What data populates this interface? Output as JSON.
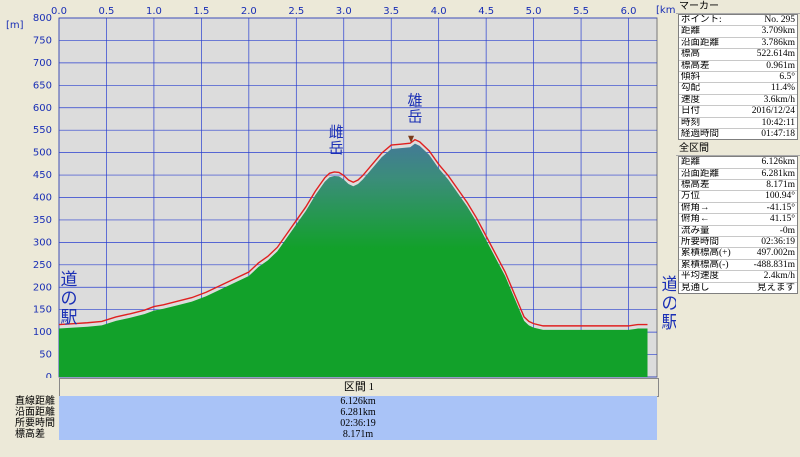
{
  "chart_data": {
    "type": "area",
    "x_unit": "[km]",
    "y_unit": "[m]",
    "x_ticks": [
      "0.0",
      "0.5",
      "1.0",
      "1.5",
      "2.0",
      "2.5",
      "3.0",
      "3.5",
      "4.0",
      "4.5",
      "5.0",
      "5.5",
      "6.0"
    ],
    "y_ticks": [
      "0",
      "50",
      "100",
      "150",
      "200",
      "250",
      "300",
      "350",
      "400",
      "450",
      "500",
      "550",
      "600",
      "650",
      "700",
      "750",
      "800"
    ],
    "xlim": [
      0,
      6.3
    ],
    "ylim": [
      0,
      800
    ],
    "grid": true,
    "colors": {
      "fill_low": "#12a12a",
      "fill_high": "#3f7f93",
      "line": "#e02020",
      "grid": "#2a3fd0",
      "background": "#dcdcdc"
    },
    "series": [
      {
        "x": [
          0.0,
          0.15,
          0.3,
          0.45,
          0.6,
          0.75,
          0.9,
          1.0,
          1.1,
          1.25,
          1.4,
          1.55,
          1.7,
          1.85,
          2.0,
          2.1,
          2.2,
          2.3,
          2.4,
          2.5,
          2.6,
          2.7,
          2.75,
          2.8,
          2.85,
          2.9,
          2.95,
          3.0,
          3.05,
          3.1,
          3.15,
          3.2,
          3.3,
          3.4,
          3.5,
          3.6,
          3.7,
          3.75,
          3.8,
          3.9,
          4.0,
          4.1,
          4.2,
          4.3,
          4.4,
          4.5,
          4.6,
          4.7,
          4.8,
          4.9,
          4.95,
          5.0,
          5.1,
          5.2,
          5.3,
          5.4,
          5.6,
          5.8,
          6.0,
          6.1,
          6.2
        ],
        "y": [
          108,
          110,
          112,
          115,
          125,
          132,
          140,
          148,
          152,
          160,
          168,
          180,
          195,
          210,
          225,
          245,
          260,
          280,
          310,
          340,
          370,
          405,
          420,
          435,
          445,
          448,
          447,
          440,
          430,
          425,
          430,
          440,
          465,
          490,
          508,
          510,
          512,
          520,
          515,
          495,
          465,
          440,
          410,
          380,
          345,
          305,
          265,
          225,
          175,
          125,
          115,
          110,
          105,
          105,
          105,
          105,
          105,
          105,
          105,
          108,
          108
        ]
      }
    ],
    "annotations": [
      {
        "label": "雌岳",
        "x": 2.92,
        "y": 450
      },
      {
        "label": "雄岳",
        "x": 3.75,
        "y": 520
      }
    ],
    "station_labels": [
      {
        "label": "道の駅",
        "side": "left"
      },
      {
        "label": "道の駅",
        "side": "right"
      }
    ]
  },
  "panel": {
    "marker_title": "マーカー",
    "marker_rows": [
      {
        "label": "ポイント:",
        "value": "No. 295"
      },
      {
        "label": "距離",
        "value": "3.709km"
      },
      {
        "label": "沿面距離",
        "value": "3.786km"
      },
      {
        "label": "標高",
        "value": "522.614m"
      },
      {
        "label": "標高差",
        "value": "0.961m"
      },
      {
        "label": "傾斜",
        "value": "6.5°"
      },
      {
        "label": "勾配",
        "value": "11.4%"
      },
      {
        "label": "速度",
        "value": "3.6km/h"
      },
      {
        "label": "日付",
        "value": "2016/12/24"
      },
      {
        "label": "時刻",
        "value": "10:42:11"
      },
      {
        "label": "経過時間",
        "value": "01:47:18"
      }
    ],
    "section_title": "全区間",
    "section_rows": [
      {
        "label": "距離",
        "value": "6.126km"
      },
      {
        "label": "沿面距離",
        "value": "6.281km"
      },
      {
        "label": "標高差",
        "value": "8.171m"
      },
      {
        "label": "方位",
        "value": "100.94°"
      },
      {
        "label": "俯角→",
        "value": "-41.15°"
      },
      {
        "label": "俯角←",
        "value": "41.15°"
      },
      {
        "label": "流み量",
        "value": "-0m"
      },
      {
        "label": "所要時間",
        "value": "02:36:19"
      },
      {
        "label": "累積標高(+)",
        "value": "497.002m"
      },
      {
        "label": "累積標高(-)",
        "value": "-488.831m"
      },
      {
        "label": "平均速度",
        "value": "2.4km/h"
      },
      {
        "label": "見通し",
        "value": "見えます"
      }
    ]
  },
  "section_bar": {
    "label": "区間 1"
  },
  "summary": [
    {
      "label": "直線距離",
      "value": "6.126km"
    },
    {
      "label": "沿面距離",
      "value": "6.281km"
    },
    {
      "label": "所要時間",
      "value": "02:36:19"
    },
    {
      "label": "標高差",
      "value": "8.171m"
    }
  ]
}
